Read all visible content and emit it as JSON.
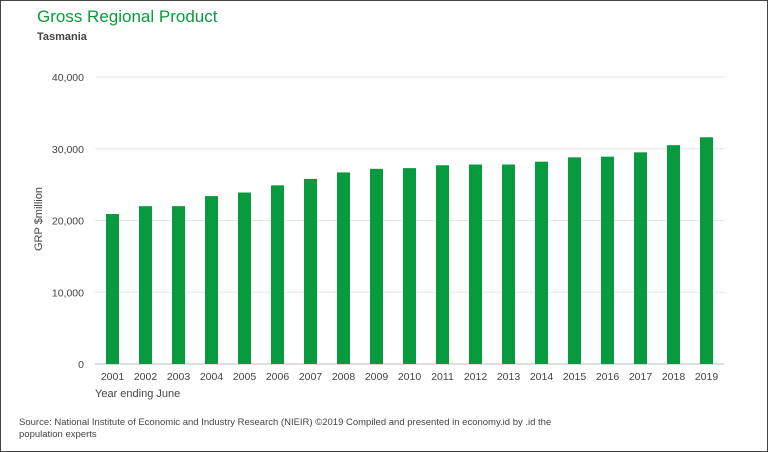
{
  "header": {
    "title": "Gross Regional Product",
    "subtitle": "Tasmania"
  },
  "footer": {
    "source": "Source: National Institute of Economic and Industry Research (NIEIR) ©2019 Compiled and presented in economy.id by .id the population experts"
  },
  "colors": {
    "title": "#0a9a3c",
    "bar": "#079a3e",
    "grid": "#e6e6e6",
    "text": "#444444"
  },
  "chart_data": {
    "type": "bar",
    "title": "Gross Regional Product",
    "subtitle": "Tasmania",
    "xlabel": "Year ending June",
    "ylabel": "GRP $million",
    "ylim": [
      0,
      40000
    ],
    "yticks": [
      0,
      10000,
      20000,
      30000,
      40000
    ],
    "ytick_labels": [
      "0",
      "10,000",
      "20,000",
      "30,000",
      "40,000"
    ],
    "grid": true,
    "categories": [
      "2001",
      "2002",
      "2003",
      "2004",
      "2005",
      "2006",
      "2007",
      "2008",
      "2009",
      "2010",
      "2011",
      "2012",
      "2013",
      "2014",
      "2015",
      "2016",
      "2017",
      "2018",
      "2019"
    ],
    "values": [
      20900,
      22000,
      22000,
      23400,
      23900,
      24900,
      25800,
      26700,
      27200,
      27300,
      27700,
      27800,
      27800,
      28200,
      28800,
      28900,
      29500,
      30500,
      31600
    ]
  }
}
